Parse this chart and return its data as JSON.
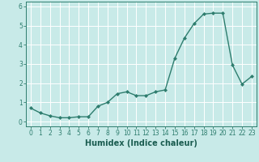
{
  "xlabel": "Humidex (Indice chaleur)",
  "x": [
    0,
    1,
    2,
    3,
    4,
    5,
    6,
    7,
    8,
    9,
    10,
    11,
    12,
    13,
    14,
    15,
    16,
    17,
    18,
    19,
    20,
    21,
    22,
    23
  ],
  "y": [
    0.7,
    0.45,
    0.3,
    0.2,
    0.2,
    0.25,
    0.25,
    0.8,
    1.0,
    1.45,
    1.55,
    1.35,
    1.35,
    1.55,
    1.65,
    3.3,
    4.35,
    5.1,
    5.6,
    5.65,
    5.65,
    2.95,
    1.95,
    2.35
  ],
  "line_color": "#2e7d6e",
  "marker": "D",
  "marker_size": 2.0,
  "line_width": 1.0,
  "bg_color": "#c8eae8",
  "grid_color": "#ffffff",
  "tick_color": "#2e7d6e",
  "label_color": "#1a5c50",
  "ylim": [
    -0.25,
    6.25
  ],
  "xlim": [
    -0.5,
    23.5
  ],
  "yticks": [
    0,
    1,
    2,
    3,
    4,
    5,
    6
  ],
  "xticks": [
    0,
    1,
    2,
    3,
    4,
    5,
    6,
    7,
    8,
    9,
    10,
    11,
    12,
    13,
    14,
    15,
    16,
    17,
    18,
    19,
    20,
    21,
    22,
    23
  ],
  "tick_fontsize": 5.5,
  "xlabel_fontsize": 7.0
}
